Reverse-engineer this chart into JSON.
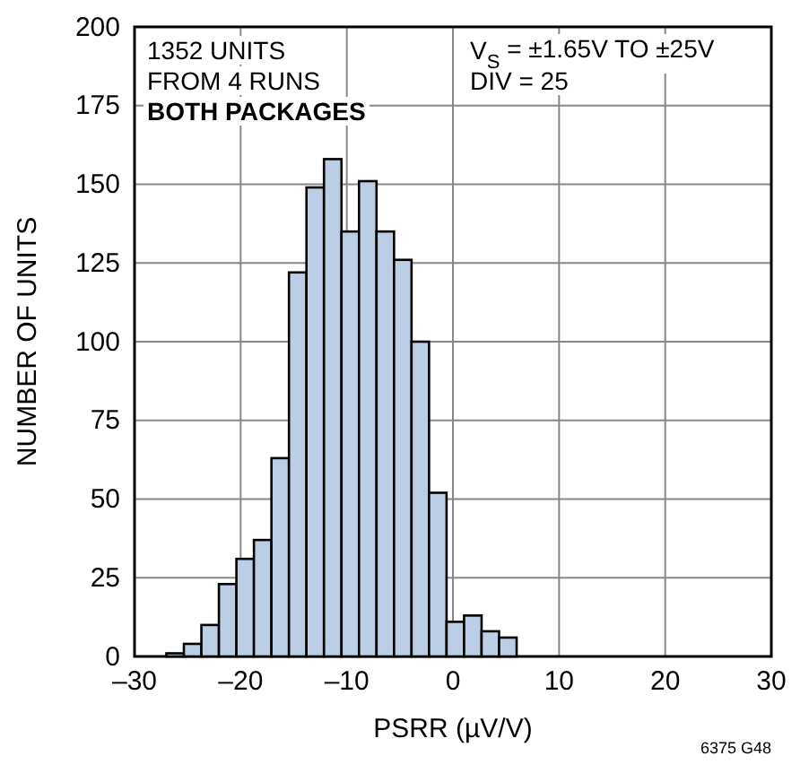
{
  "chart_data": {
    "type": "histogram",
    "xlabel": "PSRR (µV/V)",
    "ylabel": "NUMBER OF UNITS",
    "bins": [
      -27,
      -25.35,
      -23.7,
      -22.05,
      -20.4,
      -18.75,
      -17.1,
      -15.45,
      -13.8,
      -12.15,
      -10.5,
      -8.85,
      -7.2,
      -5.55,
      -3.9,
      -2.25,
      -0.6,
      1.05,
      2.7,
      4.35,
      6
    ],
    "values": [
      1,
      4,
      10,
      23,
      31,
      37,
      63,
      122,
      149,
      158,
      135,
      151,
      135,
      126,
      100,
      52,
      11,
      13,
      8,
      6
    ],
    "color": "#bccde6",
    "xlim": [
      -30,
      30
    ],
    "xticks": [
      {
        "value": -30,
        "label": "–30"
      },
      {
        "value": -20,
        "label": "–20"
      },
      {
        "value": -10,
        "label": "–10"
      },
      0,
      10,
      20,
      30
    ],
    "ylim": [
      0,
      200
    ],
    "yticks": [
      0,
      25,
      50,
      75,
      100,
      125,
      150,
      175,
      200
    ],
    "grid": true,
    "annotations": [
      "1352 UNITS",
      "FROM 4 RUNS",
      "BOTH PACKAGES",
      "V$_{S}$ = ±1.65V TO ±25V",
      "DIV = 25",
      "6375 G48"
    ]
  }
}
